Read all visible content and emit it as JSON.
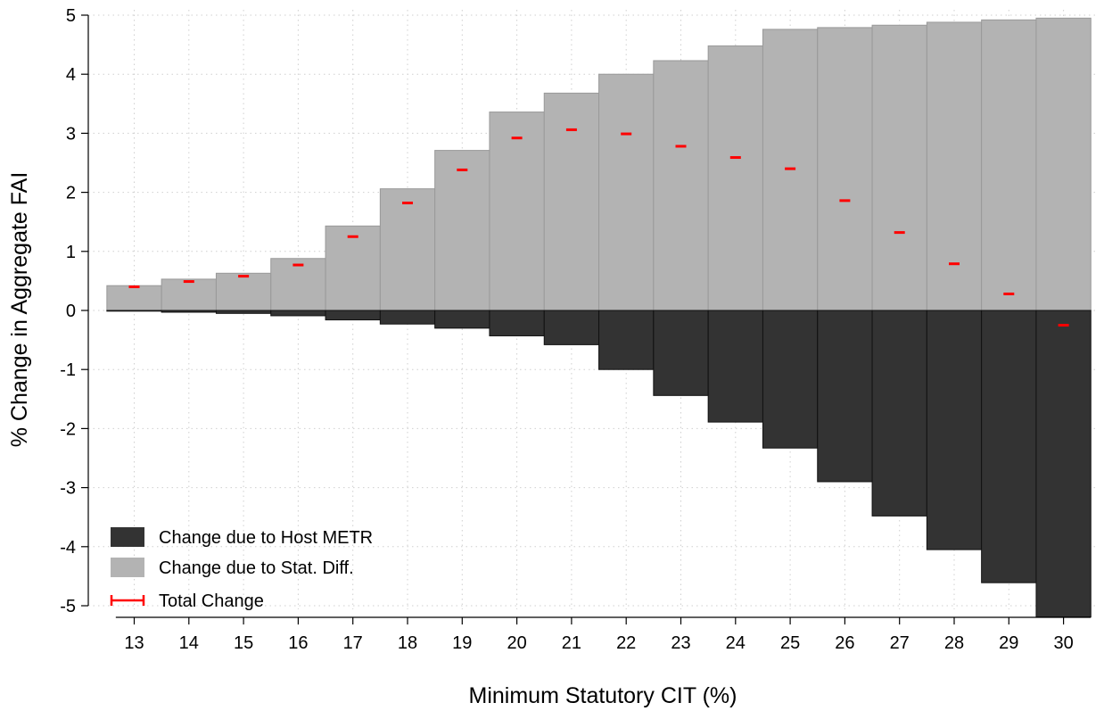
{
  "chart_data": {
    "type": "bar",
    "xlabel": "Minimum Statutory CIT (%)",
    "ylabel": "% Change in Aggregate FAI",
    "categories": [
      "13",
      "14",
      "15",
      "16",
      "17",
      "18",
      "19",
      "20",
      "21",
      "22",
      "23",
      "24",
      "25",
      "26",
      "27",
      "28",
      "29",
      "30"
    ],
    "ylim": [
      -5,
      5
    ],
    "yticks": [
      -5,
      -4,
      -3,
      -2,
      -1,
      0,
      1,
      2,
      3,
      4,
      5
    ],
    "grid": true,
    "legend_position": "bottom-left",
    "series": [
      {
        "name": "Change due to Host METR",
        "kind": "bar",
        "color": "#333333",
        "values": [
          -0.01,
          -0.03,
          -0.05,
          -0.09,
          -0.16,
          -0.23,
          -0.3,
          -0.43,
          -0.58,
          -1.0,
          -1.44,
          -1.89,
          -2.33,
          -2.9,
          -3.48,
          -4.05,
          -4.61,
          -5.19
        ]
      },
      {
        "name": "Change due to Stat. Diff.",
        "kind": "bar",
        "color": "#b3b3b3",
        "values": [
          0.42,
          0.53,
          0.63,
          0.88,
          1.43,
          2.06,
          2.71,
          3.36,
          3.68,
          4.0,
          4.23,
          4.48,
          4.76,
          4.79,
          4.83,
          4.88,
          4.92,
          4.95
        ]
      },
      {
        "name": "Total Change",
        "kind": "marker",
        "color": "#ff0000",
        "values": [
          0.4,
          0.49,
          0.58,
          0.77,
          1.25,
          1.82,
          2.38,
          2.92,
          3.06,
          2.99,
          2.78,
          2.59,
          2.4,
          1.86,
          1.32,
          0.79,
          0.28,
          -0.25
        ]
      }
    ]
  }
}
